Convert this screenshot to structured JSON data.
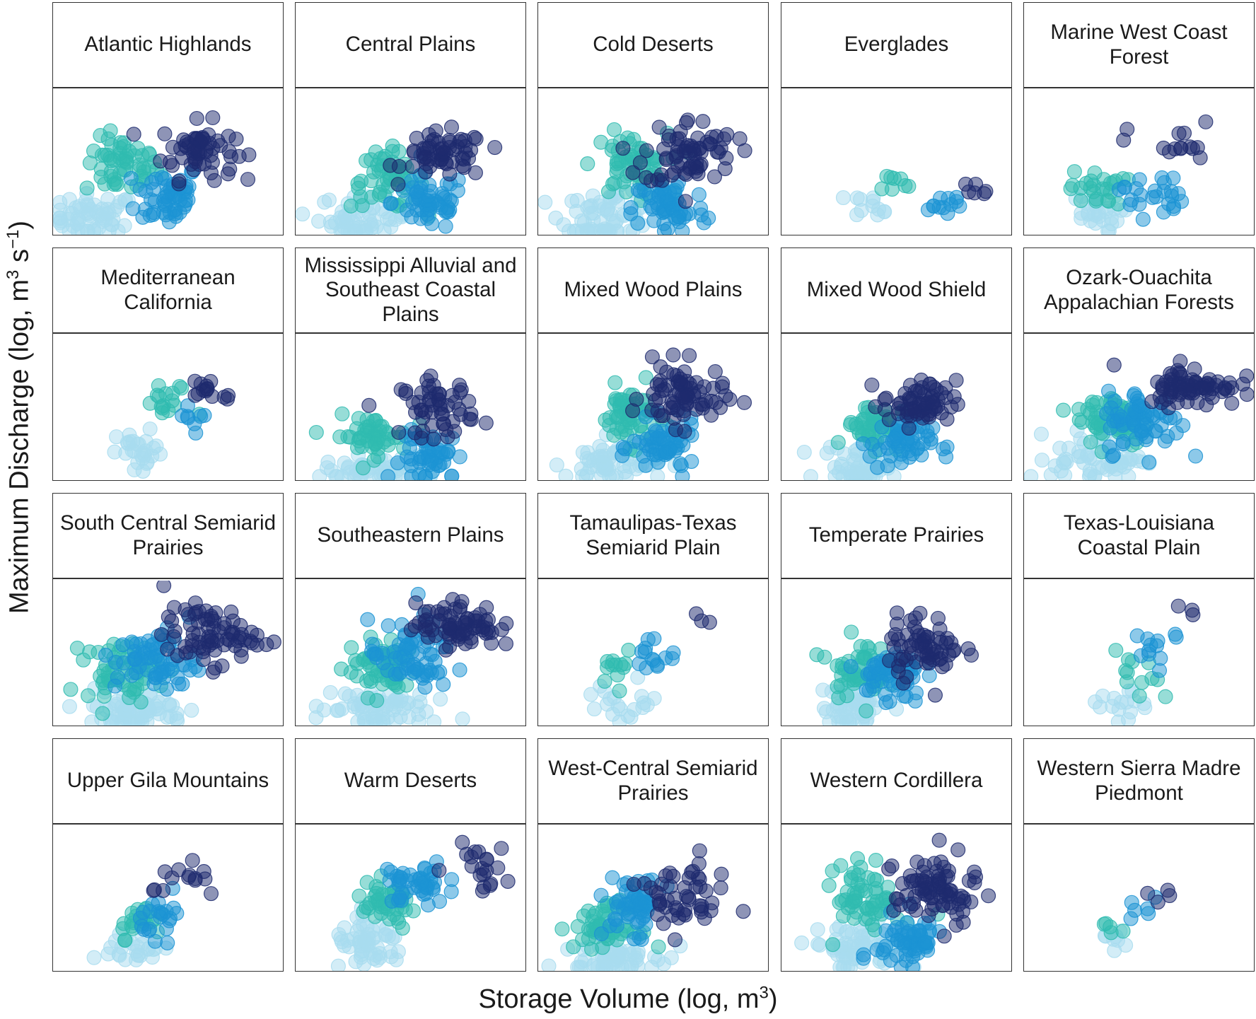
{
  "axes": {
    "ylabel_main": "Maximum Discharge (log, m",
    "ylabel_sup1": "3",
    "ylabel_mid": " s",
    "ylabel_sup2": "−1",
    "ylabel_end": ")",
    "xlabel_main": "Storage Volume (log, m",
    "xlabel_sup": "3",
    "xlabel_end": ")"
  },
  "colors": {
    "cluster_1": "#a8dcef",
    "cluster_2": "#2fbbb0",
    "cluster_3": "#1b93d3",
    "cluster_4": "#1d2a6e"
  },
  "chart_data": {
    "type": "scatter",
    "layout": "facet-grid 4 rows x 5 columns, shared axes, no tick labels",
    "x_axis": "storage volume (relative log scale 0-1)",
    "y_axis": "maximum discharge (relative log scale 0-1)",
    "series": [
      "cluster_1",
      "cluster_2",
      "cluster_3",
      "cluster_4"
    ],
    "facets": [
      {
        "title": "Atlantic Highlands",
        "density": 1.0,
        "clusters": [
          {
            "cx": 0.18,
            "cy": 0.12,
            "sx": 0.09,
            "sy": 0.08,
            "n": 60
          },
          {
            "cx": 0.3,
            "cy": 0.47,
            "sx": 0.08,
            "sy": 0.1,
            "n": 55
          },
          {
            "cx": 0.5,
            "cy": 0.27,
            "sx": 0.07,
            "sy": 0.11,
            "n": 55
          },
          {
            "cx": 0.63,
            "cy": 0.58,
            "sx": 0.08,
            "sy": 0.1,
            "n": 60
          }
        ]
      },
      {
        "title": "Central Plains",
        "density": 1.0,
        "clusters": [
          {
            "cx": 0.3,
            "cy": 0.12,
            "sx": 0.1,
            "sy": 0.08,
            "n": 60
          },
          {
            "cx": 0.4,
            "cy": 0.38,
            "sx": 0.08,
            "sy": 0.1,
            "n": 55
          },
          {
            "cx": 0.58,
            "cy": 0.22,
            "sx": 0.08,
            "sy": 0.1,
            "n": 55
          },
          {
            "cx": 0.65,
            "cy": 0.55,
            "sx": 0.09,
            "sy": 0.08,
            "n": 60
          }
        ]
      },
      {
        "title": "Cold Deserts",
        "density": 1.0,
        "clusters": [
          {
            "cx": 0.3,
            "cy": 0.13,
            "sx": 0.1,
            "sy": 0.09,
            "n": 65
          },
          {
            "cx": 0.4,
            "cy": 0.48,
            "sx": 0.08,
            "sy": 0.11,
            "n": 60
          },
          {
            "cx": 0.57,
            "cy": 0.18,
            "sx": 0.08,
            "sy": 0.11,
            "n": 60
          },
          {
            "cx": 0.66,
            "cy": 0.57,
            "sx": 0.1,
            "sy": 0.12,
            "n": 70
          }
        ]
      },
      {
        "title": "Everglades",
        "density": 0.3,
        "clusters": [
          {
            "cx": 0.4,
            "cy": 0.21,
            "sx": 0.05,
            "sy": 0.04,
            "n": 12
          },
          {
            "cx": 0.48,
            "cy": 0.35,
            "sx": 0.04,
            "sy": 0.04,
            "n": 8
          },
          {
            "cx": 0.7,
            "cy": 0.2,
            "sx": 0.06,
            "sy": 0.05,
            "n": 12
          },
          {
            "cx": 0.82,
            "cy": 0.32,
            "sx": 0.06,
            "sy": 0.04,
            "n": 6
          }
        ]
      },
      {
        "title": "Marine West Coast Forest",
        "density": 0.45,
        "clusters": [
          {
            "cx": 0.3,
            "cy": 0.14,
            "sx": 0.06,
            "sy": 0.07,
            "n": 30
          },
          {
            "cx": 0.32,
            "cy": 0.32,
            "sx": 0.06,
            "sy": 0.06,
            "n": 25
          },
          {
            "cx": 0.55,
            "cy": 0.28,
            "sx": 0.07,
            "sy": 0.08,
            "n": 25
          },
          {
            "cx": 0.65,
            "cy": 0.62,
            "sx": 0.1,
            "sy": 0.08,
            "n": 14
          }
        ]
      },
      {
        "title": "Mediterranean California",
        "density": 0.45,
        "clusters": [
          {
            "cx": 0.38,
            "cy": 0.18,
            "sx": 0.05,
            "sy": 0.08,
            "n": 28
          },
          {
            "cx": 0.5,
            "cy": 0.52,
            "sx": 0.06,
            "sy": 0.07,
            "n": 16
          },
          {
            "cx": 0.62,
            "cy": 0.42,
            "sx": 0.04,
            "sy": 0.06,
            "n": 8
          },
          {
            "cx": 0.68,
            "cy": 0.63,
            "sx": 0.06,
            "sy": 0.05,
            "n": 14
          }
        ]
      },
      {
        "title": "Mississippi Alluvial and Southeast Coastal Plains",
        "density": 1.0,
        "clusters": [
          {
            "cx": 0.35,
            "cy": 0.06,
            "sx": 0.11,
            "sy": 0.05,
            "n": 60
          },
          {
            "cx": 0.33,
            "cy": 0.3,
            "sx": 0.08,
            "sy": 0.07,
            "n": 50
          },
          {
            "cx": 0.6,
            "cy": 0.16,
            "sx": 0.07,
            "sy": 0.09,
            "n": 50
          },
          {
            "cx": 0.62,
            "cy": 0.5,
            "sx": 0.08,
            "sy": 0.1,
            "n": 55
          }
        ]
      },
      {
        "title": "Mixed Wood Plains",
        "density": 1.0,
        "clusters": [
          {
            "cx": 0.32,
            "cy": 0.12,
            "sx": 0.1,
            "sy": 0.08,
            "n": 65
          },
          {
            "cx": 0.4,
            "cy": 0.45,
            "sx": 0.06,
            "sy": 0.1,
            "n": 60
          },
          {
            "cx": 0.55,
            "cy": 0.22,
            "sx": 0.07,
            "sy": 0.09,
            "n": 60
          },
          {
            "cx": 0.63,
            "cy": 0.58,
            "sx": 0.09,
            "sy": 0.11,
            "n": 75
          }
        ]
      },
      {
        "title": "Mixed Wood Shield",
        "density": 1.0,
        "clusters": [
          {
            "cx": 0.34,
            "cy": 0.1,
            "sx": 0.08,
            "sy": 0.07,
            "n": 55
          },
          {
            "cx": 0.4,
            "cy": 0.38,
            "sx": 0.06,
            "sy": 0.08,
            "n": 50
          },
          {
            "cx": 0.52,
            "cy": 0.25,
            "sx": 0.07,
            "sy": 0.09,
            "n": 55
          },
          {
            "cx": 0.6,
            "cy": 0.53,
            "sx": 0.08,
            "sy": 0.08,
            "n": 65
          }
        ]
      },
      {
        "title": "Ozark-Ouachita Appalachian Forests",
        "density": 1.0,
        "clusters": [
          {
            "cx": 0.32,
            "cy": 0.15,
            "sx": 0.1,
            "sy": 0.09,
            "n": 65
          },
          {
            "cx": 0.38,
            "cy": 0.43,
            "sx": 0.08,
            "sy": 0.1,
            "n": 60
          },
          {
            "cx": 0.52,
            "cy": 0.4,
            "sx": 0.08,
            "sy": 0.11,
            "n": 65
          },
          {
            "cx": 0.73,
            "cy": 0.65,
            "sx": 0.1,
            "sy": 0.07,
            "n": 75
          }
        ]
      },
      {
        "title": "South Central Semiarid Prairies",
        "density": 1.0,
        "clusters": [
          {
            "cx": 0.35,
            "cy": 0.1,
            "sx": 0.12,
            "sy": 0.07,
            "n": 70
          },
          {
            "cx": 0.3,
            "cy": 0.38,
            "sx": 0.08,
            "sy": 0.1,
            "n": 60
          },
          {
            "cx": 0.45,
            "cy": 0.45,
            "sx": 0.09,
            "sy": 0.11,
            "n": 65
          },
          {
            "cx": 0.68,
            "cy": 0.62,
            "sx": 0.1,
            "sy": 0.1,
            "n": 75
          }
        ]
      },
      {
        "title": "Southeastern Plains",
        "density": 1.0,
        "clusters": [
          {
            "cx": 0.33,
            "cy": 0.12,
            "sx": 0.12,
            "sy": 0.08,
            "n": 70
          },
          {
            "cx": 0.38,
            "cy": 0.4,
            "sx": 0.08,
            "sy": 0.1,
            "n": 60
          },
          {
            "cx": 0.5,
            "cy": 0.48,
            "sx": 0.09,
            "sy": 0.12,
            "n": 65
          },
          {
            "cx": 0.7,
            "cy": 0.7,
            "sx": 0.09,
            "sy": 0.08,
            "n": 75
          }
        ]
      },
      {
        "title": "Tamaulipas-Texas Semiarid Plain",
        "density": 0.4,
        "clusters": [
          {
            "cx": 0.38,
            "cy": 0.15,
            "sx": 0.08,
            "sy": 0.08,
            "n": 20
          },
          {
            "cx": 0.35,
            "cy": 0.42,
            "sx": 0.04,
            "sy": 0.06,
            "n": 12
          },
          {
            "cx": 0.5,
            "cy": 0.5,
            "sx": 0.05,
            "sy": 0.07,
            "n": 14
          },
          {
            "cx": 0.76,
            "cy": 0.72,
            "sx": 0.06,
            "sy": 0.03,
            "n": 3
          }
        ]
      },
      {
        "title": "Temperate Prairies",
        "density": 1.0,
        "clusters": [
          {
            "cx": 0.32,
            "cy": 0.13,
            "sx": 0.07,
            "sy": 0.08,
            "n": 55
          },
          {
            "cx": 0.33,
            "cy": 0.4,
            "sx": 0.06,
            "sy": 0.1,
            "n": 50
          },
          {
            "cx": 0.47,
            "cy": 0.35,
            "sx": 0.07,
            "sy": 0.1,
            "n": 55
          },
          {
            "cx": 0.62,
            "cy": 0.55,
            "sx": 0.08,
            "sy": 0.11,
            "n": 65
          }
        ]
      },
      {
        "title": "Texas-Louisiana Coastal Plain",
        "density": 0.35,
        "clusters": [
          {
            "cx": 0.42,
            "cy": 0.12,
            "sx": 0.06,
            "sy": 0.06,
            "n": 16
          },
          {
            "cx": 0.5,
            "cy": 0.32,
            "sx": 0.05,
            "sy": 0.09,
            "n": 12
          },
          {
            "cx": 0.58,
            "cy": 0.5,
            "sx": 0.06,
            "sy": 0.12,
            "n": 12
          },
          {
            "cx": 0.72,
            "cy": 0.75,
            "sx": 0.03,
            "sy": 0.12,
            "n": 3
          }
        ]
      },
      {
        "title": "Upper Gila Mountains",
        "density": 0.5,
        "clusters": [
          {
            "cx": 0.35,
            "cy": 0.14,
            "sx": 0.06,
            "sy": 0.06,
            "n": 25
          },
          {
            "cx": 0.38,
            "cy": 0.35,
            "sx": 0.05,
            "sy": 0.06,
            "n": 22
          },
          {
            "cx": 0.48,
            "cy": 0.38,
            "sx": 0.05,
            "sy": 0.07,
            "n": 22
          },
          {
            "cx": 0.6,
            "cy": 0.62,
            "sx": 0.08,
            "sy": 0.07,
            "n": 14
          }
        ]
      },
      {
        "title": "Warm Deserts",
        "density": 0.9,
        "clusters": [
          {
            "cx": 0.32,
            "cy": 0.17,
            "sx": 0.08,
            "sy": 0.08,
            "n": 55
          },
          {
            "cx": 0.4,
            "cy": 0.45,
            "sx": 0.07,
            "sy": 0.08,
            "n": 45
          },
          {
            "cx": 0.52,
            "cy": 0.6,
            "sx": 0.07,
            "sy": 0.08,
            "n": 45
          },
          {
            "cx": 0.8,
            "cy": 0.72,
            "sx": 0.07,
            "sy": 0.08,
            "n": 20
          }
        ]
      },
      {
        "title": "West-Central Semiarid Prairies",
        "density": 1.0,
        "clusters": [
          {
            "cx": 0.32,
            "cy": 0.12,
            "sx": 0.1,
            "sy": 0.08,
            "n": 65
          },
          {
            "cx": 0.3,
            "cy": 0.3,
            "sx": 0.07,
            "sy": 0.08,
            "n": 55
          },
          {
            "cx": 0.42,
            "cy": 0.45,
            "sx": 0.06,
            "sy": 0.1,
            "n": 55
          },
          {
            "cx": 0.62,
            "cy": 0.5,
            "sx": 0.1,
            "sy": 0.12,
            "n": 50
          }
        ]
      },
      {
        "title": "Western Cordillera",
        "density": 1.0,
        "clusters": [
          {
            "cx": 0.32,
            "cy": 0.15,
            "sx": 0.1,
            "sy": 0.09,
            "n": 65
          },
          {
            "cx": 0.38,
            "cy": 0.5,
            "sx": 0.07,
            "sy": 0.12,
            "n": 60
          },
          {
            "cx": 0.55,
            "cy": 0.2,
            "sx": 0.07,
            "sy": 0.1,
            "n": 60
          },
          {
            "cx": 0.67,
            "cy": 0.55,
            "sx": 0.09,
            "sy": 0.13,
            "n": 80
          }
        ]
      },
      {
        "title": "Western Sierra Madre Piedmont",
        "density": 0.3,
        "clusters": [
          {
            "cx": 0.35,
            "cy": 0.22,
            "sx": 0.04,
            "sy": 0.04,
            "n": 8
          },
          {
            "cx": 0.38,
            "cy": 0.28,
            "sx": 0.03,
            "sy": 0.04,
            "n": 5
          },
          {
            "cx": 0.52,
            "cy": 0.4,
            "sx": 0.04,
            "sy": 0.06,
            "n": 6
          },
          {
            "cx": 0.58,
            "cy": 0.5,
            "sx": 0.03,
            "sy": 0.03,
            "n": 4
          }
        ]
      }
    ]
  }
}
